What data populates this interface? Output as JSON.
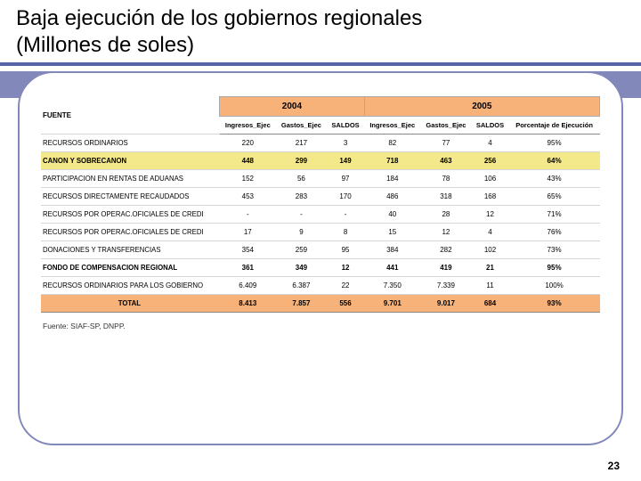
{
  "title_line1": "Baja ejecución de los gobiernos regionales",
  "title_line2": "(Millones de soles)",
  "table": {
    "fuente_label": "FUENTE",
    "year_2004": "2004",
    "year_2005": "2005",
    "sub_headers": {
      "ing": "Ingresos_Ejec",
      "gas": "Gastos_Ejec",
      "sal": "SALDOS",
      "pct": "Porcentaje de Ejecución"
    },
    "rows": [
      {
        "label": "RECURSOS ORDINARIOS",
        "c": [
          "220",
          "217",
          "3",
          "82",
          "77",
          "4",
          "95%"
        ],
        "style": ""
      },
      {
        "label": "CANON Y SOBRECANON",
        "c": [
          "448",
          "299",
          "149",
          "718",
          "463",
          "256",
          "64%"
        ],
        "style": "highlight"
      },
      {
        "label": "PARTICIPACION EN RENTAS DE ADUANAS",
        "c": [
          "152",
          "56",
          "97",
          "184",
          "78",
          "106",
          "43%"
        ],
        "style": ""
      },
      {
        "label": "RECURSOS DIRECTAMENTE RECAUDADOS",
        "c": [
          "453",
          "283",
          "170",
          "486",
          "318",
          "168",
          "65%"
        ],
        "style": ""
      },
      {
        "label": "RECURSOS POR OPERAC.OFICIALES DE CREDI",
        "c": [
          "-",
          "-",
          "-",
          "40",
          "28",
          "12",
          "71%"
        ],
        "style": ""
      },
      {
        "label": "RECURSOS POR OPERAC.OFICIALES DE CREDI",
        "c": [
          "17",
          "9",
          "8",
          "15",
          "12",
          "4",
          "76%"
        ],
        "style": ""
      },
      {
        "label": "DONACIONES Y TRANSFERENCIAS",
        "c": [
          "354",
          "259",
          "95",
          "384",
          "282",
          "102",
          "73%"
        ],
        "style": ""
      },
      {
        "label": "FONDO DE COMPENSACION REGIONAL",
        "c": [
          "361",
          "349",
          "12",
          "441",
          "419",
          "21",
          "95%"
        ],
        "style": "bold"
      },
      {
        "label": "RECURSOS ORDINARIOS PARA LOS GOBIERNO",
        "c": [
          "6.409",
          "6.387",
          "22",
          "7.350",
          "7.339",
          "11",
          "100%"
        ],
        "style": ""
      },
      {
        "label": "TOTAL",
        "c": [
          "8.413",
          "7.857",
          "556",
          "9.701",
          "9.017",
          "684",
          "93%"
        ],
        "style": "total"
      }
    ]
  },
  "source_note": "Fuente: SIAF-SP, DNPP.",
  "page_number": "23",
  "colors": {
    "accent": "#8289ba",
    "underline": "#5963a8",
    "header_orange": "#f7b27a",
    "row_highlight": "#f4e98a"
  }
}
